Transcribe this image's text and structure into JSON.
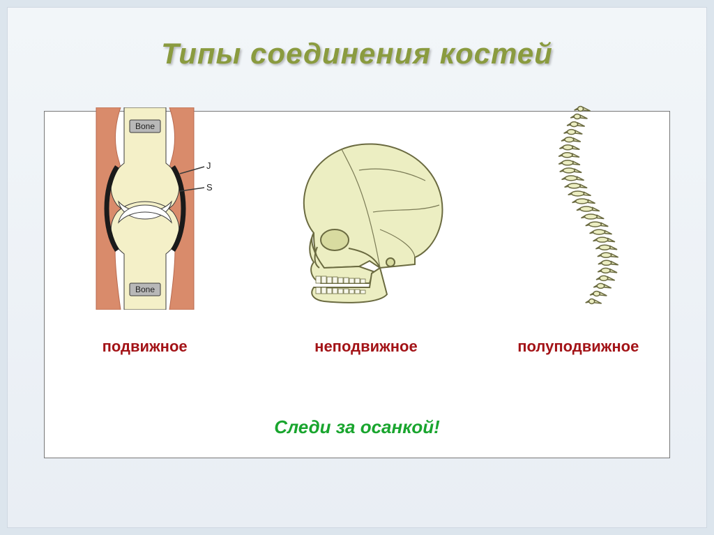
{
  "page": {
    "background_color": "#dce5ed",
    "inner_bg_top": "#f2f6f9",
    "inner_bg_bottom": "#e9eef4"
  },
  "title": {
    "text": "Типы соединения костей",
    "color": "#8a9b3f",
    "fontsize": 42
  },
  "panel": {
    "background": "#ffffff",
    "border_color": "#777777"
  },
  "diagrams": {
    "caption_color": "#a31317",
    "caption_fontsize": 22,
    "joint": {
      "caption": "подвижное",
      "labels": {
        "top": "Bone",
        "bottom": "Bone",
        "j": "J",
        "s": "S"
      },
      "colors": {
        "muscle": "#d98b6b",
        "muscle_shadow": "#b86a4f",
        "bone": "#f4f0c8",
        "bone_shade": "#e4dca0",
        "cartilage": "#ffffff",
        "capsule": "#1a1a1a",
        "label_bg": "#b8b8b8",
        "label_text": "#222222",
        "outline": "#3a3a3a"
      }
    },
    "skull": {
      "caption": "неподвижное",
      "colors": {
        "fill": "#eceec2",
        "shade": "#d8dba0",
        "outline": "#6a6a40",
        "suture": "#7a7a55",
        "teeth": "#f8f8ec"
      }
    },
    "spine": {
      "caption": "полуподвижное",
      "colors": {
        "fill": "#eceec2",
        "outline": "#6a6a40"
      }
    }
  },
  "footer": {
    "text": "Следи за осанкой!",
    "color": "#19a52e",
    "fontsize": 26
  }
}
